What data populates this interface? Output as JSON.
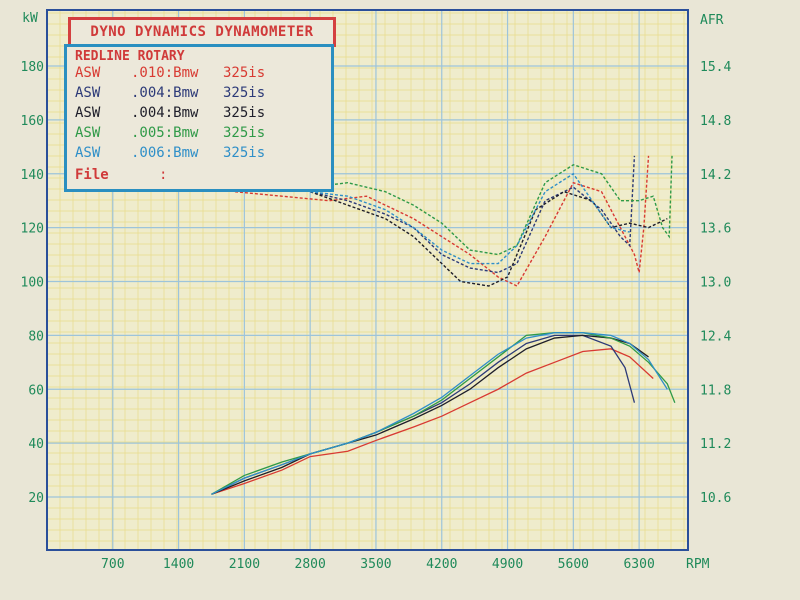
{
  "chart_data": {
    "type": "line",
    "title": "DYNO DYNAMICS DYNAMOMETER",
    "subtitle": "REDLINE ROTARY",
    "xlabel": "RPM",
    "ylabel_left": "kW",
    "ylabel_right": "AFR",
    "xlim": [
      0,
      6820
    ],
    "ylim_left": [
      10,
      190
    ],
    "ylim_right": [
      10.3,
      15.7
    ],
    "x_ticks": [
      "700",
      "1400",
      "2100",
      "2800",
      "3500",
      "4200",
      "4900",
      "5600",
      "6300"
    ],
    "x_tick_values": [
      700,
      1400,
      2100,
      2800,
      3500,
      4200,
      4900,
      5600,
      6300
    ],
    "y_left_ticks": [
      "20",
      "40",
      "60",
      "80",
      "100",
      "120",
      "140",
      "160",
      "180"
    ],
    "y_left_values": [
      20,
      40,
      60,
      80,
      100,
      120,
      140,
      160,
      180
    ],
    "y_right_ticks": [
      "10.6",
      "11.2",
      "11.8",
      "12.4",
      "13.0",
      "13.6",
      "14.2",
      "14.8",
      "15.4"
    ],
    "y_right_values": [
      10.6,
      11.2,
      11.8,
      12.4,
      13.0,
      13.6,
      14.2,
      14.8,
      15.4
    ],
    "grid": true,
    "legend_position": "top-left",
    "file_label": "File",
    "file_value": ":",
    "series": [
      {
        "name": "ASW .010:Bmw 325is",
        "prefix": "ASW",
        "run": ".010:Bmw",
        "car": "325is",
        "color": "#d83a32",
        "power": {
          "rpm": [
            1750,
            2100,
            2500,
            2800,
            3200,
            3500,
            3900,
            4200,
            4500,
            4800,
            5100,
            5400,
            5700,
            6000,
            6200,
            6450
          ],
          "kw": [
            21,
            25,
            30,
            35,
            37,
            41,
            46,
            50,
            55,
            60,
            66,
            70,
            74,
            75,
            72,
            64
          ]
        },
        "afr": {
          "rpm": [
            2000,
            2500,
            3000,
            3400,
            3900,
            4200,
            4500,
            4800,
            5000,
            5300,
            5600,
            5900,
            6100,
            6250,
            6300,
            6350,
            6400
          ],
          "value": [
            14.0,
            13.95,
            13.9,
            13.95,
            13.7,
            13.5,
            13.3,
            13.05,
            12.95,
            13.5,
            14.1,
            14.0,
            13.6,
            13.3,
            13.1,
            13.6,
            14.4
          ]
        }
      },
      {
        "name": "ASW .004:Bmw 325is",
        "prefix": "ASW",
        "run": ".004:Bmw",
        "car": "325is",
        "color": "#2c3a78",
        "power": {
          "rpm": [
            1750,
            2100,
            2500,
            2800,
            3200,
            3500,
            3900,
            4200,
            4500,
            4800,
            5100,
            5400,
            5700,
            6000,
            6150,
            6250
          ],
          "kw": [
            21,
            27,
            32,
            36,
            40,
            44,
            50,
            55,
            62,
            70,
            77,
            80,
            80,
            76,
            68,
            55
          ]
        },
        "afr": {
          "rpm": [
            2800,
            3200,
            3600,
            3900,
            4200,
            4500,
            4800,
            5000,
            5300,
            5600,
            5900,
            6100,
            6200,
            6250
          ],
          "value": [
            14.0,
            13.9,
            13.75,
            13.6,
            13.3,
            13.15,
            13.1,
            13.2,
            13.9,
            14.05,
            13.8,
            13.5,
            13.4,
            14.4
          ]
        }
      },
      {
        "name": "ASW .004:Bmw 325is",
        "prefix": "ASW",
        "run": ".004:Bmw",
        "car": "325is",
        "color": "#1e1e2a",
        "power": {
          "rpm": [
            1750,
            2100,
            2500,
            2800,
            3200,
            3500,
            3900,
            4200,
            4500,
            4800,
            5100,
            5400,
            5700,
            6000,
            6200,
            6400
          ],
          "kw": [
            21,
            26,
            31,
            36,
            40,
            43,
            49,
            54,
            60,
            68,
            75,
            79,
            80,
            79,
            77,
            72
          ]
        },
        "afr": {
          "rpm": [
            2800,
            3200,
            3600,
            3900,
            4200,
            4400,
            4700,
            4900,
            5200,
            5500,
            5800,
            6000,
            6200,
            6400,
            6600
          ],
          "value": [
            14.0,
            13.85,
            13.7,
            13.5,
            13.2,
            13.0,
            12.95,
            13.05,
            13.8,
            14.0,
            13.9,
            13.6,
            13.65,
            13.6,
            13.7
          ]
        }
      },
      {
        "name": "ASW .005:Bmw 325is",
        "prefix": "ASW",
        "run": ".005:Bmw",
        "car": "325is",
        "color": "#2f9a48",
        "power": {
          "rpm": [
            1750,
            2100,
            2500,
            2800,
            3200,
            3500,
            3900,
            4200,
            4500,
            4800,
            5100,
            5400,
            5700,
            6000,
            6200,
            6400,
            6600,
            6680
          ],
          "kw": [
            21,
            28,
            33,
            36,
            40,
            44,
            50,
            56,
            64,
            72,
            80,
            81,
            81,
            79,
            76,
            70,
            62,
            55
          ]
        },
        "afr": {
          "rpm": [
            2800,
            3200,
            3600,
            3900,
            4200,
            4500,
            4800,
            5000,
            5300,
            5600,
            5900,
            6100,
            6300,
            6450,
            6550,
            6620,
            6650
          ],
          "value": [
            14.05,
            14.1,
            14.0,
            13.85,
            13.65,
            13.35,
            13.3,
            13.4,
            14.1,
            14.3,
            14.2,
            13.9,
            13.9,
            13.95,
            13.6,
            13.5,
            14.4
          ]
        }
      },
      {
        "name": "ASW .006:Bmw 325is",
        "prefix": "ASW",
        "run": ".006:Bmw",
        "car": "325is",
        "color": "#2f8fc8",
        "power": {
          "rpm": [
            1750,
            2100,
            2500,
            2800,
            3200,
            3500,
            3900,
            4200,
            4500,
            4800,
            5100,
            5400,
            5700,
            6000,
            6200,
            6400,
            6600
          ],
          "kw": [
            21,
            27,
            32,
            36,
            40,
            44,
            51,
            57,
            65,
            73,
            79,
            81,
            81,
            80,
            77,
            71,
            60
          ]
        },
        "afr": {
          "rpm": [
            2800,
            3200,
            3600,
            3900,
            4200,
            4500,
            4800,
            5000,
            5300,
            5600,
            5800,
            6000,
            6200
          ],
          "value": [
            14.0,
            13.95,
            13.8,
            13.6,
            13.35,
            13.2,
            13.2,
            13.4,
            14.0,
            14.2,
            13.9,
            13.6,
            13.55
          ]
        }
      }
    ]
  },
  "colors": {
    "paper": "#efeccc",
    "grid_major": "#9dc4da",
    "grid_minor": "#e8dc8a",
    "axis": "#2a4f9a",
    "label": "#1f8a5a"
  }
}
